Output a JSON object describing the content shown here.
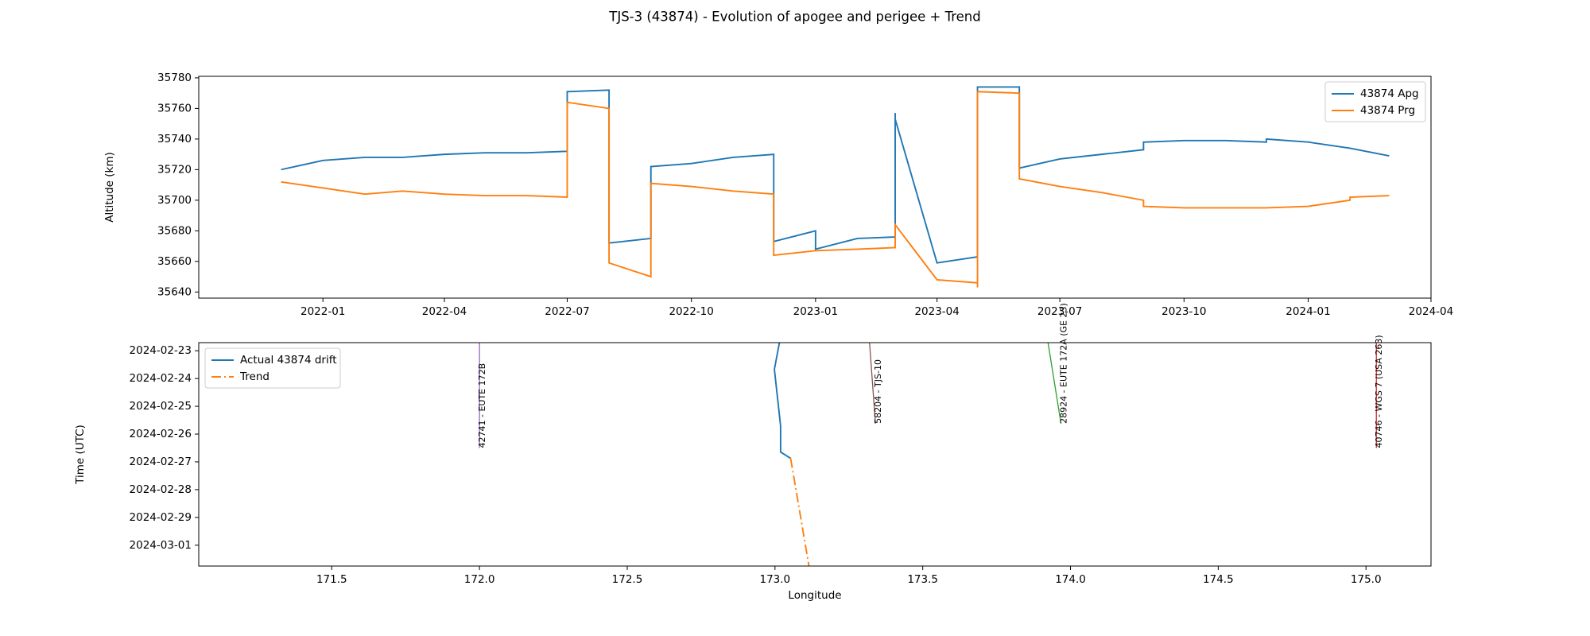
{
  "chart_data": [
    {
      "type": "line",
      "title": "TJS-3 (43874) - Evolution of apogee and perigee + Trend",
      "ylabel": "Altitude (km)",
      "xlim": [
        "2021-10",
        "2024-04"
      ],
      "xticks": [
        "2022-01",
        "2022-04",
        "2022-07",
        "2022-10",
        "2023-01",
        "2023-04",
        "2023-07",
        "2023-10",
        "2024-01",
        "2024-04"
      ],
      "ylim": [
        35636,
        35781
      ],
      "yticks": [
        35640,
        35660,
        35680,
        35700,
        35720,
        35740,
        35760,
        35780
      ],
      "legend": "upper right",
      "series": [
        {
          "name": "43874 Apg",
          "color": "#1f77b4",
          "x": [
            "2021-12",
            "2022-01",
            "2022-02",
            "2022-03",
            "2022-04",
            "2022-05",
            "2022-06",
            "2022-07",
            "2022-07",
            "2022-08",
            "2022-08",
            "2022-09",
            "2022-09",
            "2022-10",
            "2022-11",
            "2022-12",
            "2022-12",
            "2023-01",
            "2023-01",
            "2023-02",
            "2023-03",
            "2023-03",
            "2023-03",
            "2023-04",
            "2023-05",
            "2023-05",
            "2023-05",
            "2023-06",
            "2023-06",
            "2023-07",
            "2023-08",
            "2023-09",
            "2023-09",
            "2023-10",
            "2023-11",
            "2023-12",
            "2023-12",
            "2024-01",
            "2024-02",
            "2024-03"
          ],
          "values": [
            35720,
            35726,
            35728,
            35728,
            35730,
            35731,
            35731,
            35732,
            35771,
            35772,
            35672,
            35675,
            35722,
            35724,
            35728,
            35730,
            35673,
            35680,
            35668,
            35675,
            35676,
            35757,
            35753,
            35659,
            35663,
            35668,
            35774,
            35774,
            35721,
            35727,
            35730,
            35733,
            35738,
            35739,
            35739,
            35738,
            35740,
            35738,
            35734,
            35729
          ]
        },
        {
          "name": "43874 Prg",
          "color": "#ff7f0e",
          "x": [
            "2021-12",
            "2022-01",
            "2022-02",
            "2022-03",
            "2022-04",
            "2022-05",
            "2022-06",
            "2022-07",
            "2022-07",
            "2022-08",
            "2022-08",
            "2022-09",
            "2022-09",
            "2022-10",
            "2022-11",
            "2022-12",
            "2022-12",
            "2023-01",
            "2023-02",
            "2023-03",
            "2023-03",
            "2023-03",
            "2023-04",
            "2023-05",
            "2023-05",
            "2023-05",
            "2023-06",
            "2023-06",
            "2023-07",
            "2023-08",
            "2023-09",
            "2023-09",
            "2023-10",
            "2023-11",
            "2023-12",
            "2024-01",
            "2024-02",
            "2024-02",
            "2024-03"
          ],
          "values": [
            35712,
            35708,
            35704,
            35706,
            35704,
            35703,
            35703,
            35702,
            35764,
            35760,
            35659,
            35650,
            35711,
            35709,
            35706,
            35704,
            35664,
            35667,
            35668,
            35669,
            35677,
            35684,
            35648,
            35646,
            35643,
            35771,
            35770,
            35714,
            35709,
            35705,
            35700,
            35696,
            35695,
            35695,
            35695,
            35696,
            35700,
            35702,
            35703
          ]
        }
      ]
    },
    {
      "type": "line",
      "xlabel": "Longitude",
      "ylabel": "Time (UTC)",
      "xlim": [
        171.05,
        175.22
      ],
      "xticks": [
        171.5,
        {
          "value": 172,
          "label": "172.0"
        },
        172.5,
        {
          "value": 173,
          "label": "173.0"
        },
        173.5,
        {
          "value": 174,
          "label": "174.0"
        },
        174.5,
        {
          "value": 175,
          "label": "175.0"
        }
      ],
      "ylim": [
        "2024-03-01T18:00",
        "2024-02-22T17:00"
      ],
      "yticks": [
        "2024-02-23",
        "2024-02-24",
        "2024-02-25",
        "2024-02-26",
        "2024-02-27",
        "2024-02-28",
        "2024-02-29",
        "2024-03-01"
      ],
      "legend": "upper left",
      "series": [
        {
          "name": "Actual 43874 drift",
          "color": "#1f77b4",
          "linestyle": "solid",
          "x": [
            173.015,
            172.998,
            173.019,
            173.019,
            173.053
          ],
          "values": [
            "2024-02-22T17:00",
            "2024-02-23T16:00",
            "2024-02-25T17:00",
            "2024-02-26T15:30",
            "2024-02-26T21:00"
          ]
        },
        {
          "name": "Trend",
          "color": "#ff7f0e",
          "linestyle": "dashdot",
          "x": [
            173.053,
            173.115
          ],
          "values": [
            "2024-02-26T21:00",
            "2024-03-01T18:00"
          ]
        }
      ],
      "tracks": [
        {
          "label": "42741 - EUTE 172B",
          "color": "#9467bd",
          "x": [
            172.0,
            172.0
          ],
          "values": [
            "2024-02-22T17:00",
            "2024-02-26T12:00"
          ]
        },
        {
          "label": "58204 - TJS-10",
          "color": "#8c564b",
          "x": [
            173.32,
            173.34
          ],
          "values": [
            "2024-02-22T17:00",
            "2024-02-25T15:00"
          ]
        },
        {
          "label": "28924 - EUTE 172A (GE 23)",
          "color": "#2ca02c",
          "x": [
            173.924,
            173.968
          ],
          "values": [
            "2024-02-22T17:00",
            "2024-02-25T15:00"
          ]
        },
        {
          "label": "40746 - WGS 7 (USA 263)",
          "color": "#d62728",
          "x": [
            175.035,
            175.035
          ],
          "values": [
            "2024-02-22T17:00",
            "2024-02-26T12:00"
          ]
        }
      ]
    }
  ]
}
